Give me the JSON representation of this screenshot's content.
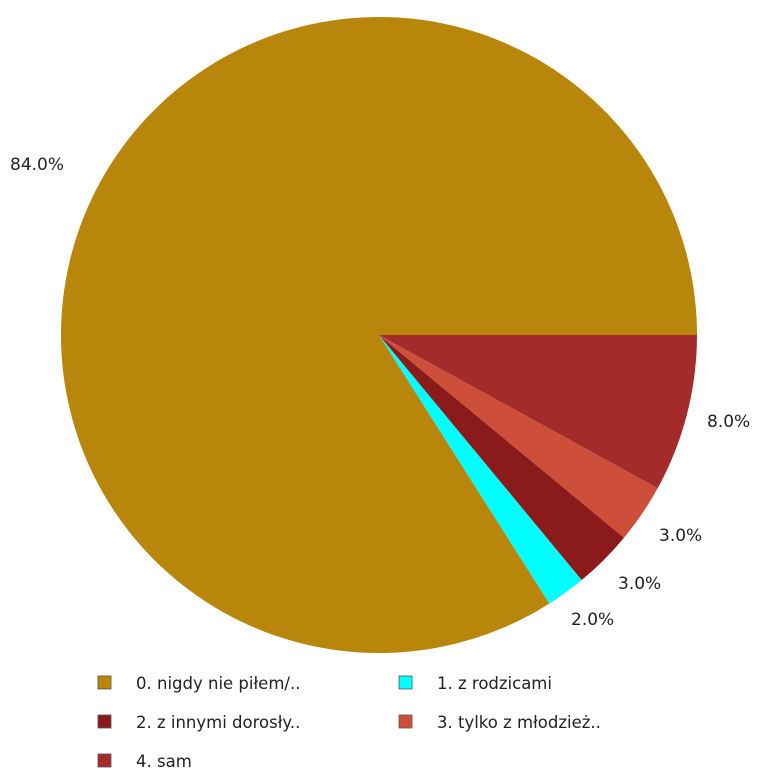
{
  "chart_data": {
    "type": "pie",
    "title": "",
    "slices": [
      {
        "label": "0. nigdy nie piłem/..",
        "value": 84.0,
        "value_label": "84.0%",
        "color": "#b8860b"
      },
      {
        "label": "1. z rodzicami",
        "value": 2.0,
        "value_label": "2.0%",
        "color": "#00ffff"
      },
      {
        "label": "2. z innymi dorosły..",
        "value": 3.0,
        "value_label": "3.0%",
        "color": "#8b1a1a"
      },
      {
        "label": "3. tylko z młodzież..",
        "value": 3.0,
        "value_label": "3.0%",
        "color": "#cd4f39"
      },
      {
        "label": "4. sam",
        "value": 8.0,
        "value_label": "8.0%",
        "color": "#a52a2a"
      }
    ],
    "legend": {
      "placement": "bottom",
      "columns": 2
    }
  }
}
